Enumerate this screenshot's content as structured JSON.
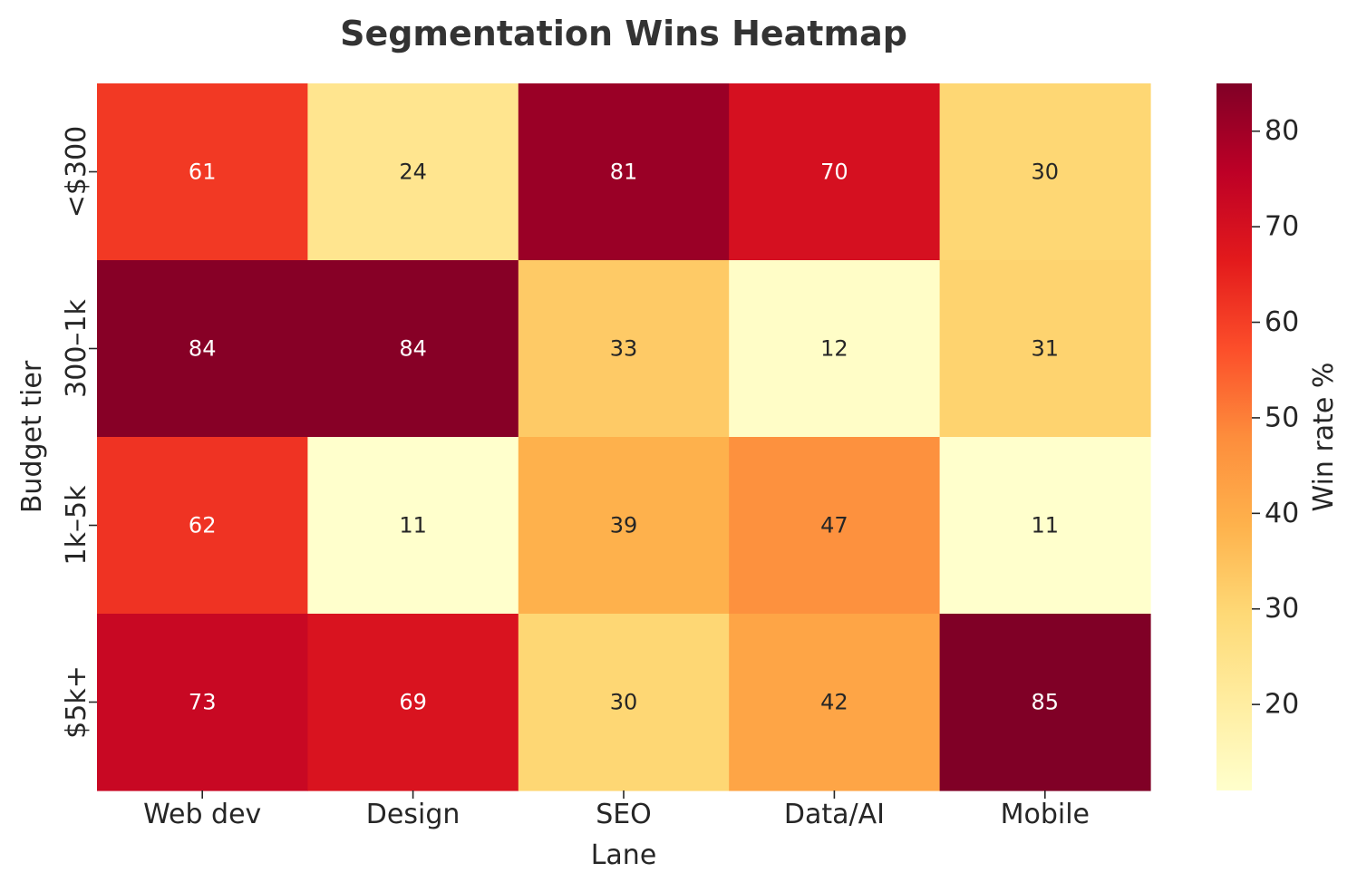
{
  "chart_data": {
    "type": "heatmap",
    "title": "Segmentation Wins Heatmap",
    "xlabel": "Lane",
    "ylabel": "Budget tier",
    "x_categories": [
      "Web dev",
      "Design",
      "SEO",
      "Data/AI",
      "Mobile"
    ],
    "y_categories": [
      "<$300",
      "300–1k",
      "1k–5k",
      "$5k+"
    ],
    "values": [
      [
        61,
        24,
        81,
        70,
        30
      ],
      [
        84,
        84,
        33,
        12,
        31
      ],
      [
        62,
        11,
        39,
        47,
        11
      ],
      [
        73,
        69,
        30,
        42,
        85
      ]
    ],
    "colorbar": {
      "label": "Win rate %",
      "ticks": [
        20,
        30,
        40,
        50,
        60,
        70,
        80
      ],
      "range": [
        11,
        85
      ]
    },
    "colormap": {
      "name": "YlOrRd",
      "stops": [
        "#ffffcc",
        "#ffeda0",
        "#fed976",
        "#feb24c",
        "#fd8d3c",
        "#fc4e2a",
        "#e31a1c",
        "#bd0026",
        "#800026"
      ]
    },
    "annotation_colors": {
      "dark": "#262626",
      "light": "#ffffff"
    },
    "grid": false
  }
}
